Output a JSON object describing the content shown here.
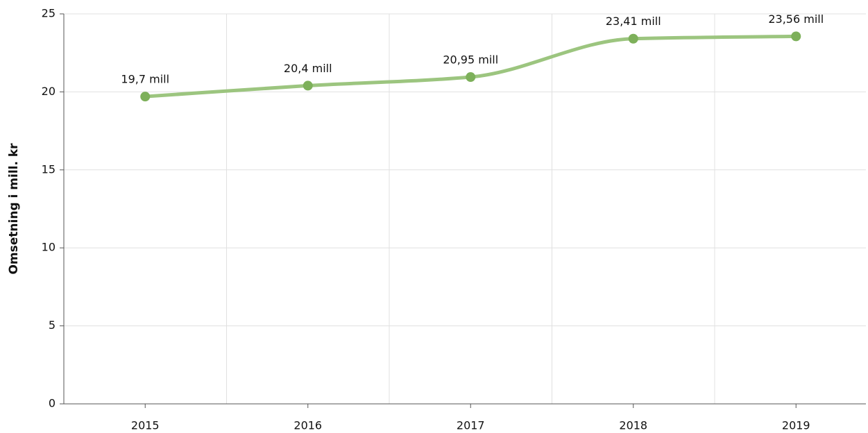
{
  "chart_data": {
    "type": "line",
    "y_label": "Omsetning i mill. kr",
    "categories": [
      "2015",
      "2016",
      "2017",
      "2018",
      "2019"
    ],
    "values": [
      19.7,
      20.4,
      20.95,
      23.41,
      23.56
    ],
    "value_labels": [
      "19,7 mill",
      "20,4 mill",
      "20,95 mill",
      "23,41 mill",
      "23,56 mill"
    ],
    "color": "#9cc57f",
    "marker_color": "#7db05a",
    "ylim": [
      0,
      25
    ],
    "yticks": [
      0,
      5,
      10,
      15,
      20,
      25
    ],
    "grid": true
  }
}
